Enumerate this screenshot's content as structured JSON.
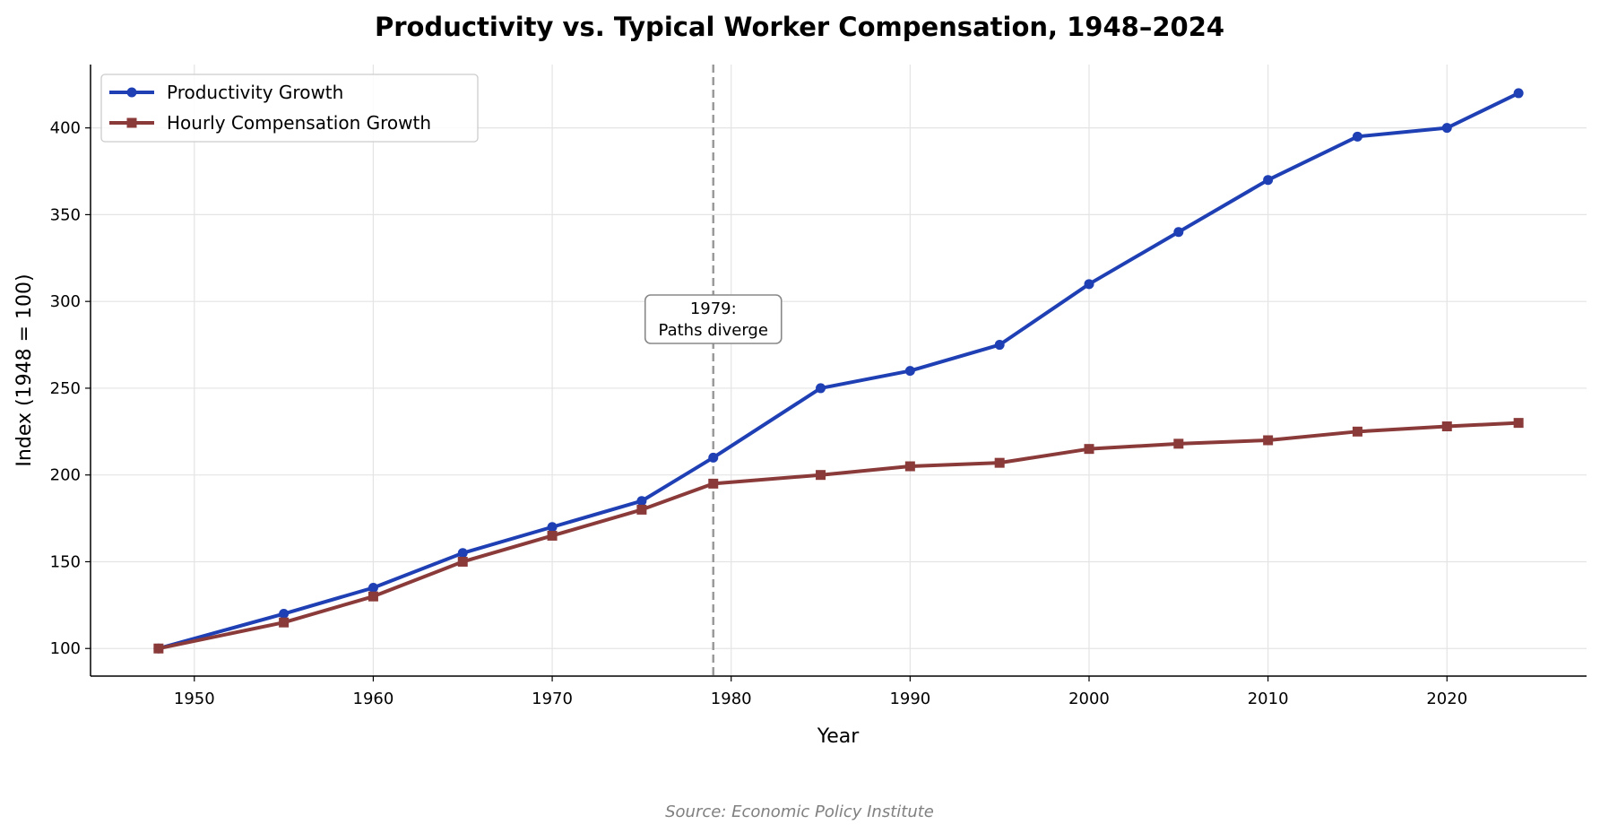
{
  "chart_data": {
    "type": "line",
    "title": "Productivity vs. Typical Worker Compensation, 1948–2024",
    "xlabel": "Year",
    "ylabel": "Index (1948 = 100)",
    "xlim": [
      1944.2,
      2027.8
    ],
    "ylim": [
      84.1,
      436.5
    ],
    "xticks": [
      1950,
      1960,
      1970,
      1980,
      1990,
      2000,
      2010,
      2020
    ],
    "yticks": [
      100,
      150,
      200,
      250,
      300,
      350,
      400
    ],
    "grid": true,
    "legend_position": "top-left",
    "x": [
      1948,
      1955,
      1960,
      1965,
      1970,
      1975,
      1979,
      1985,
      1990,
      1995,
      2000,
      2005,
      2010,
      2015,
      2020,
      2024
    ],
    "series": [
      {
        "name": "Productivity Growth",
        "color": "#1f3fb4",
        "marker": "circle",
        "values": [
          100,
          120,
          135,
          155,
          170,
          185,
          210,
          250,
          260,
          275,
          310,
          340,
          370,
          395,
          400,
          420
        ]
      },
      {
        "name": "Hourly Compensation Growth",
        "color": "#8b3a3a",
        "marker": "square",
        "values": [
          100,
          115,
          130,
          150,
          165,
          180,
          195,
          200,
          205,
          207,
          215,
          218,
          220,
          225,
          228,
          230
        ]
      }
    ],
    "annotation": {
      "x": 1979,
      "line1": "1979:",
      "line2": "Paths diverge",
      "line_color": "#9a9a9a"
    },
    "source": "Source: Economic Policy Institute"
  }
}
